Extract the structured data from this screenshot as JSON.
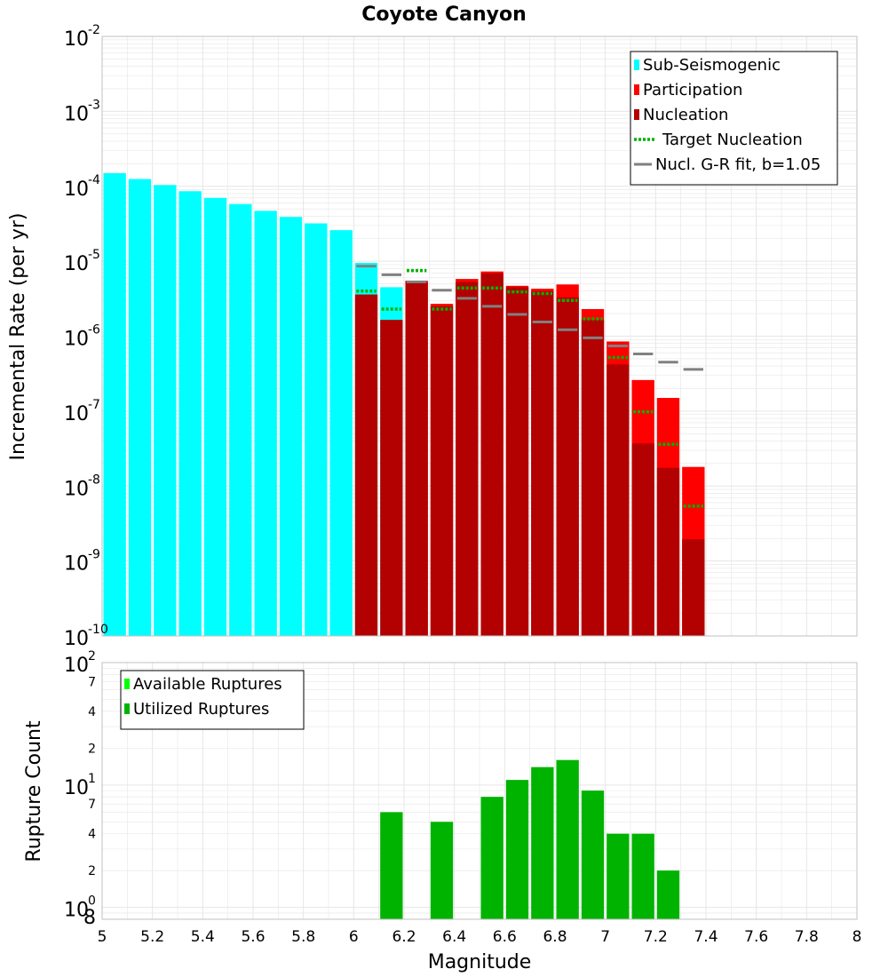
{
  "colors": {
    "sub_seismogenic": "#00ffff",
    "participation": "#ff0000",
    "nucleation": "#b30000",
    "target_nucleation": "#00b300",
    "gr_fit": "#808080",
    "available": "#00ff00",
    "utilized": "#00b300",
    "grid": "#e6e6e6",
    "border": "#c0c0c0"
  },
  "chart_data": [
    {
      "type": "bar",
      "title": "Coyote Canyon",
      "ylabel": "Incremental Rate (per yr)",
      "xlabel": "",
      "y_scale": "log",
      "xlim": [
        5,
        8
      ],
      "ylim": [
        1e-10,
        0.01
      ],
      "bin_width": 0.1,
      "y_decades": [
        {
          "base": "10",
          "exp": "-10",
          "value": 1e-10
        },
        {
          "base": "10",
          "exp": "-9",
          "value": 1e-09
        },
        {
          "base": "10",
          "exp": "-8",
          "value": 1e-08
        },
        {
          "base": "10",
          "exp": "-7",
          "value": 1e-07
        },
        {
          "base": "10",
          "exp": "-6",
          "value": 1e-06
        },
        {
          "base": "10",
          "exp": "-5",
          "value": 1e-05
        },
        {
          "base": "10",
          "exp": "-4",
          "value": 0.0001
        },
        {
          "base": "10",
          "exp": "-3",
          "value": 0.001
        },
        {
          "base": "10",
          "exp": "-2",
          "value": 0.01
        }
      ],
      "legend_position": "top-right",
      "legend": [
        {
          "label": "Sub-Seismogenic",
          "key": "sub_seismogenic",
          "style": "box"
        },
        {
          "label": "Participation",
          "key": "participation",
          "style": "box"
        },
        {
          "label": "Nucleation",
          "key": "nucleation",
          "style": "box"
        },
        {
          "label": "Target Nucleation",
          "key": "target_nucleation",
          "style": "dotted"
        },
        {
          "label": "Nucl. G-R fit, b=1.05",
          "key": "gr_fit",
          "style": "line"
        }
      ],
      "series": [
        {
          "name": "Sub-Seismogenic",
          "x": [
            5.05,
            5.15,
            5.25,
            5.35,
            5.45,
            5.55,
            5.65,
            5.75,
            5.85,
            5.95,
            6.05,
            6.15
          ],
          "values": [
            0.00015,
            0.000125,
            0.000104,
            8.6e-05,
            7e-05,
            5.8e-05,
            4.7e-05,
            3.9e-05,
            3.2e-05,
            2.6e-05,
            9.5e-06,
            4.5e-06
          ]
        },
        {
          "name": "Participation",
          "x": [
            6.25,
            6.35,
            6.45,
            6.55,
            6.65,
            6.75,
            6.85,
            6.95,
            7.05,
            7.15,
            7.25,
            7.35
          ],
          "values": [
            5.5e-06,
            2.7e-06,
            5.8e-06,
            7.3e-06,
            4.7e-06,
            4.3e-06,
            4.9e-06,
            2.3e-06,
            8.5e-07,
            2.6e-07,
            1.5e-07,
            1.8e-08
          ]
        },
        {
          "name": "Nucleation",
          "x": [
            6.05,
            6.15,
            6.25,
            6.35,
            6.45,
            6.55,
            6.65,
            6.75,
            6.85,
            6.95,
            7.05,
            7.15,
            7.25,
            7.35
          ],
          "values": [
            3.6e-06,
            1.65e-06,
            5.2e-06,
            2.5e-06,
            5.3e-06,
            6.9e-06,
            4.5e-06,
            4e-06,
            3.3e-06,
            1.65e-06,
            4.2e-07,
            3.7e-08,
            1.75e-08,
            1.95e-09
          ]
        },
        {
          "name": "Target Nucleation",
          "x": [
            6.05,
            6.15,
            6.25,
            6.35,
            6.45,
            6.55,
            6.65,
            6.75,
            6.85,
            6.95,
            7.05,
            7.15,
            7.25,
            7.35
          ],
          "values": [
            4e-06,
            2.3e-06,
            7.5e-06,
            2.3e-06,
            4.4e-06,
            4.4e-06,
            3.9e-06,
            3.7e-06,
            3e-06,
            1.7e-06,
            5.2e-07,
            9.8e-08,
            3.6e-08,
            5.4e-09
          ]
        },
        {
          "name": "Nucl. G-R fit, b=1.05",
          "x": [
            6.05,
            6.15,
            6.25,
            6.35,
            6.45,
            6.55,
            6.65,
            6.75,
            6.85,
            6.95,
            7.05,
            7.15,
            7.25,
            7.35
          ],
          "values": [
            8.6e-06,
            6.6e-06,
            5.3e-06,
            4.1e-06,
            3.2e-06,
            2.5e-06,
            1.95e-06,
            1.55e-06,
            1.22e-06,
            9.5e-07,
            7.4e-07,
            5.8e-07,
            4.5e-07,
            3.6e-07
          ]
        }
      ]
    },
    {
      "type": "bar",
      "title": "",
      "xlabel": "Magnitude",
      "ylabel": "Rupture Count",
      "y_scale": "log",
      "xlim": [
        5,
        8
      ],
      "ylim": [
        0.8,
        100
      ],
      "bin_width": 0.1,
      "x_ticks": [
        "5",
        "5.2",
        "5.4",
        "5.6",
        "5.8",
        "6",
        "6.2",
        "6.4",
        "6.6",
        "6.8",
        "7",
        "7.2",
        "7.4",
        "7.6",
        "7.8",
        "8"
      ],
      "y_decades": [
        {
          "base": "10",
          "exp": "0",
          "value": 1
        },
        {
          "base": "10",
          "exp": "1",
          "value": 10
        },
        {
          "base": "10",
          "exp": "2",
          "value": 100
        }
      ],
      "y_minor_labels": [
        {
          "label": "8",
          "value": 0.8
        },
        {
          "label": "2",
          "value": 2
        },
        {
          "label": "4",
          "value": 4
        },
        {
          "label": "7",
          "value": 7
        },
        {
          "label": "2",
          "value": 20
        },
        {
          "label": "4",
          "value": 40
        },
        {
          "label": "7",
          "value": 70
        }
      ],
      "legend_position": "top-left",
      "legend": [
        {
          "label": "Available Ruptures",
          "key": "available",
          "style": "box"
        },
        {
          "label": "Utilized Ruptures",
          "key": "utilized",
          "style": "box"
        }
      ],
      "series": [
        {
          "name": "Utilized Ruptures",
          "x": [
            6.15,
            6.35,
            6.55,
            6.65,
            6.75,
            6.85,
            6.95,
            7.05,
            7.15,
            7.25
          ],
          "values": [
            6,
            5,
            8,
            11,
            14,
            16,
            9,
            4,
            4,
            2
          ]
        }
      ]
    }
  ]
}
